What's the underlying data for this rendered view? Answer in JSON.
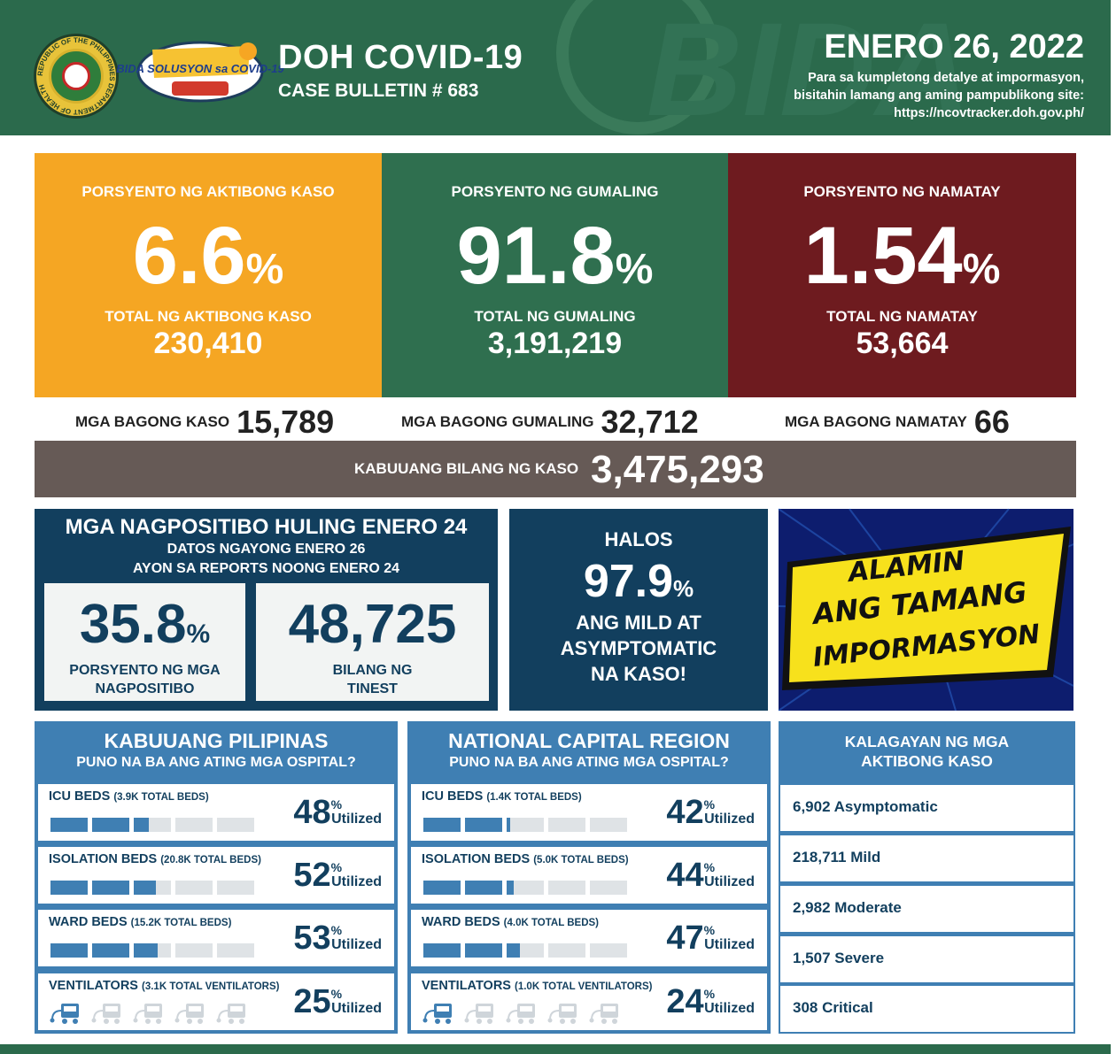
{
  "header": {
    "title": "DOH COVID-19",
    "subtitle": "CASE BULLETIN # 683",
    "date": "ENERO 26, 2022",
    "info_line1": "Para sa kumpletong detalye at impormasyon,",
    "info_line2": "bisitahin lamang ang aming pampublikong site:",
    "info_line3": "https://ncovtracker.doh.gov.ph/",
    "seal_text": "REPUBLIC OF THE PHILIPPINES DEPARTMENT OF HEALTH",
    "bida_text": "BIDA SOLUSYON sa COVID-19",
    "bg_text": "BIDA"
  },
  "summary": {
    "active": {
      "label": "PORSYENTO NG AKTIBONG KASO",
      "pct": "6.6",
      "total_label": "TOTAL NG AKTIBONG KASO",
      "total": "230,410"
    },
    "recovered": {
      "label": "PORSYENTO NG GUMALING",
      "pct": "91.8",
      "total_label": "TOTAL NG GUMALING",
      "total": "3,191,219"
    },
    "deaths": {
      "label": "PORSYENTO NG NAMATAY",
      "pct": "1.54",
      "total_label": "TOTAL NG NAMATAY",
      "total": "53,664"
    },
    "percent_sign": "%"
  },
  "new": {
    "cases_label": "MGA BAGONG KASO",
    "cases": "15,789",
    "recovered_label": "MGA BAGONG GUMALING",
    "recovered": "32,712",
    "deaths_label": "MGA BAGONG NAMATAY",
    "deaths": "66"
  },
  "total_cases": {
    "label": "KABUUANG BILANG NG KASO",
    "value": "3,475,293"
  },
  "positivity": {
    "title": "MGA NAGPOSITIBO HULING ENERO 24",
    "line1": "DATOS NGAYONG ENERO 26",
    "line2": "AYON SA REPORTS NOONG ENERO 24",
    "rate": "35.8",
    "rate_caption1": "PORSYENTO NG MGA",
    "rate_caption2": "NAGPOSITIBO",
    "tested": "48,725",
    "tested_caption1": "BILANG NG",
    "tested_caption2": "TINEST"
  },
  "mild": {
    "halos": "HALOS",
    "pct": "97.9",
    "line1": "ANG MILD AT",
    "line2": "ASYMPTOMATIC",
    "line3": "NA KASO!"
  },
  "alamin": {
    "line1": "ALAMIN",
    "line2": "ANG TAMANG",
    "line3": "IMPORMASYON"
  },
  "utilized_label": "Utilized",
  "hospitals": {
    "ph": {
      "title": "KABUUANG PILIPINAS",
      "subtitle": "PUNO NA BA ANG ATING MGA OSPITAL?",
      "rows": [
        {
          "label": "ICU BEDS",
          "detail": "(3.9K TOTAL BEDS)",
          "pct": "48",
          "fraction": 0.48
        },
        {
          "label": "ISOLATION BEDS",
          "detail": "(20.8K TOTAL BEDS)",
          "pct": "52",
          "fraction": 0.52
        },
        {
          "label": "WARD BEDS",
          "detail": "(15.2K TOTAL BEDS)",
          "pct": "53",
          "fraction": 0.53
        },
        {
          "label": "VENTILATORS",
          "detail": "(3.1K TOTAL VENTILATORS)",
          "pct": "25",
          "fraction": 0.25
        }
      ]
    },
    "ncr": {
      "title": "NATIONAL CAPITAL REGION",
      "subtitle": "PUNO NA BA ANG ATING MGA OSPITAL?",
      "rows": [
        {
          "label": "ICU BEDS",
          "detail": "(1.4K TOTAL BEDS)",
          "pct": "42",
          "fraction": 0.42
        },
        {
          "label": "ISOLATION BEDS",
          "detail": "(5.0K TOTAL BEDS)",
          "pct": "44",
          "fraction": 0.44
        },
        {
          "label": "WARD BEDS",
          "detail": "(4.0K TOTAL BEDS)",
          "pct": "47",
          "fraction": 0.47
        },
        {
          "label": "VENTILATORS",
          "detail": "(1.0K TOTAL VENTILATORS)",
          "pct": "24",
          "fraction": 0.24
        }
      ]
    }
  },
  "status": {
    "title_line1": "KALAGAYAN NG MGA",
    "title_line2": "AKTIBONG KASO",
    "rows": [
      "6,902 Asymptomatic",
      "218,711 Mild",
      "2,982 Moderate",
      "1,507 Severe",
      "308 Critical"
    ]
  },
  "colors": {
    "green": "#2b6a4c",
    "orange": "#f5a623",
    "maroon": "#6e1b1f",
    "navy": "#123f5e",
    "blue": "#3f7fb3",
    "gray": "#665a56"
  }
}
